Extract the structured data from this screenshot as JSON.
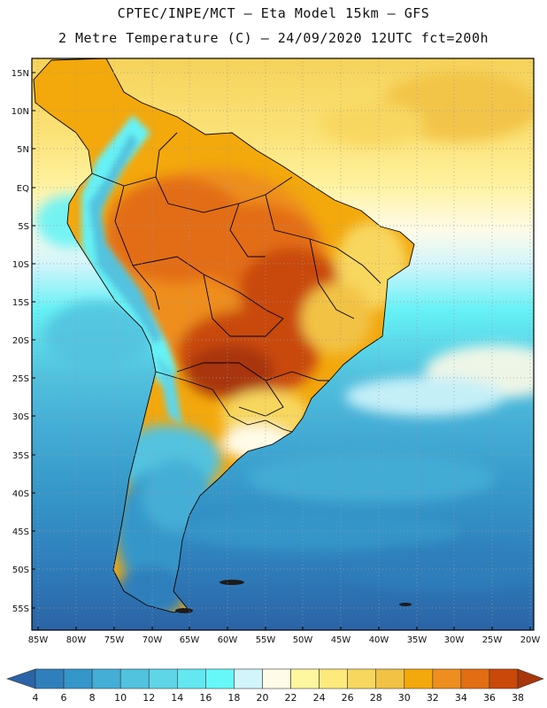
{
  "title": {
    "line1": "CPTEC/INPE/MCT –  Eta Model 15km – GFS",
    "line2": "2 Metre Temperature (C) – 24/09/2020 12UTC fct=200h"
  },
  "map": {
    "lat_labels": [
      "15N",
      "10N",
      "5N",
      "EQ",
      "5S",
      "10S",
      "15S",
      "20S",
      "25S",
      "30S",
      "35S",
      "40S",
      "45S",
      "50S",
      "55S"
    ],
    "lon_labels": [
      "85W",
      "80W",
      "75W",
      "70W",
      "65W",
      "60W",
      "55W",
      "50W",
      "45W",
      "40W",
      "35W",
      "30W",
      "25W",
      "20W"
    ],
    "region": "South America"
  },
  "colorbar": {
    "labels": [
      "4",
      "6",
      "8",
      "10",
      "12",
      "14",
      "16",
      "18",
      "20",
      "22",
      "24",
      "26",
      "28",
      "30",
      "32",
      "34",
      "36",
      "38"
    ],
    "colors": [
      "#2a63a6",
      "#2f7fbc",
      "#3597c9",
      "#45aed6",
      "#52c3df",
      "#5fd6e8",
      "#63e8f2",
      "#66f7f8",
      "#d2f5fb",
      "#fefbe8",
      "#fff6a0",
      "#fde97c",
      "#f8d75e",
      "#f2c244",
      "#f3a80c",
      "#ee8e1e",
      "#e36d13",
      "#c9480a",
      "#a8360a"
    ]
  }
}
